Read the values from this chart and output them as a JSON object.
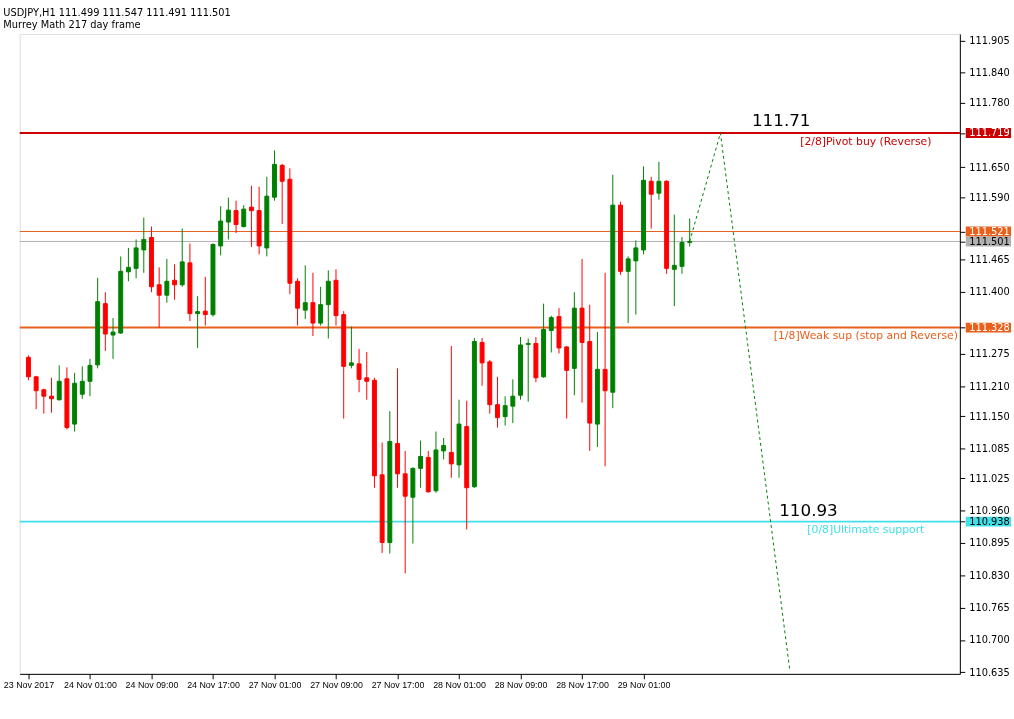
{
  "chart_data": {
    "type": "candlestick",
    "title": "USDJPY,H1  111.499 111.547 111.491 111.501",
    "subtitle": "Murrey Math 217 day frame",
    "categories": [
      "23 Nov 2017",
      null,
      null,
      null,
      null,
      null,
      null,
      null,
      "24 Nov 01:00",
      null,
      null,
      null,
      null,
      null,
      null,
      null,
      "24 Nov 09:00",
      null,
      null,
      null,
      null,
      null,
      null,
      null,
      "24 Nov 17:00",
      null,
      null,
      null,
      null,
      null,
      null,
      null,
      "27 Nov 01:00",
      null,
      null,
      null,
      null,
      null,
      null,
      null,
      "27 Nov 09:00",
      null,
      null,
      null,
      null,
      null,
      null,
      null,
      "27 Nov 17:00",
      null,
      null,
      null,
      null,
      null,
      null,
      null,
      "28 Nov 01:00",
      null,
      null,
      null,
      null,
      null,
      null,
      null,
      "28 Nov 09:00",
      null,
      null,
      null,
      null,
      null,
      null,
      null,
      "28 Nov 17:00",
      null,
      null,
      null,
      null,
      null,
      null,
      null,
      "29 Nov 01:00",
      null,
      null,
      null,
      null,
      null,
      null,
      null,
      null,
      null,
      null,
      null,
      null,
      null,
      null,
      null,
      null,
      null,
      null,
      null,
      null,
      null,
      null,
      null,
      null,
      null,
      null,
      null,
      null,
      null,
      null,
      null,
      null,
      null,
      null,
      null,
      null,
      null,
      null,
      null,
      null
    ],
    "ohlc": [
      [
        111.268,
        111.272,
        111.222,
        111.229
      ],
      [
        111.229,
        111.231,
        111.164,
        111.201
      ],
      [
        111.203,
        111.205,
        111.155,
        111.19
      ],
      [
        111.19,
        111.227,
        111.157,
        111.185
      ],
      [
        111.183,
        111.252,
        111.181,
        111.22
      ],
      [
        111.225,
        111.248,
        111.123,
        111.127
      ],
      [
        111.134,
        111.237,
        111.119,
        111.216
      ],
      [
        111.194,
        111.25,
        111.185,
        111.22
      ],
      [
        111.22,
        111.265,
        111.19,
        111.252
      ],
      [
        111.253,
        111.428,
        111.246,
        111.38
      ],
      [
        111.376,
        111.399,
        111.281,
        111.315
      ],
      [
        111.313,
        111.347,
        111.265,
        111.319
      ],
      [
        111.317,
        111.471,
        111.315,
        111.441
      ],
      [
        111.44,
        111.488,
        111.421,
        111.449
      ],
      [
        111.447,
        111.505,
        111.427,
        111.488
      ],
      [
        111.484,
        111.549,
        111.438,
        111.505
      ],
      [
        111.509,
        111.531,
        111.399,
        111.41
      ],
      [
        111.414,
        111.449,
        111.328,
        111.393
      ],
      [
        111.393,
        111.466,
        111.378,
        111.421
      ],
      [
        111.423,
        111.455,
        111.384,
        111.414
      ],
      [
        111.414,
        111.527,
        111.41,
        111.46
      ],
      [
        111.458,
        111.497,
        111.341,
        111.356
      ],
      [
        111.356,
        111.391,
        111.287,
        111.36
      ],
      [
        111.361,
        111.43,
        111.332,
        111.354
      ],
      [
        111.354,
        111.497,
        111.35,
        111.495
      ],
      [
        111.492,
        111.572,
        111.473,
        111.542
      ],
      [
        111.54,
        111.589,
        111.505,
        111.564
      ],
      [
        111.563,
        111.583,
        111.518,
        111.535
      ],
      [
        111.531,
        111.574,
        111.529,
        111.566
      ],
      [
        111.57,
        111.613,
        111.49,
        111.563
      ],
      [
        111.563,
        111.611,
        111.475,
        111.492
      ],
      [
        111.488,
        111.631,
        111.471,
        111.592
      ],
      [
        111.59,
        111.684,
        111.583,
        111.656
      ],
      [
        111.654,
        111.657,
        111.536,
        111.622
      ],
      [
        111.626,
        111.648,
        111.395,
        111.417
      ],
      [
        111.421,
        111.427,
        111.332,
        111.367
      ],
      [
        111.363,
        111.453,
        111.345,
        111.378
      ],
      [
        111.378,
        111.438,
        111.311,
        111.337
      ],
      [
        111.337,
        111.41,
        111.332,
        111.374
      ],
      [
        111.374,
        111.443,
        111.306,
        111.421
      ],
      [
        111.423,
        111.445,
        111.332,
        111.352
      ],
      [
        111.354,
        111.361,
        111.145,
        111.25
      ],
      [
        111.252,
        111.33,
        111.246,
        111.257
      ],
      [
        111.255,
        111.285,
        111.198,
        111.224
      ],
      [
        111.227,
        111.279,
        111.183,
        111.22
      ],
      [
        111.222,
        111.227,
        111.006,
        111.03
      ],
      [
        111.032,
        111.097,
        110.875,
        110.896
      ],
      [
        110.896,
        111.16,
        110.874,
        111.099
      ],
      [
        111.095,
        111.246,
        111.006,
        111.034
      ],
      [
        111.034,
        111.08,
        110.834,
        110.989
      ],
      [
        110.987,
        111.047,
        110.894,
        111.045
      ],
      [
        111.045,
        111.101,
        111.006,
        111.069
      ],
      [
        111.067,
        111.08,
        110.996,
        110.998
      ],
      [
        111.0,
        111.119,
        110.996,
        111.082
      ],
      [
        111.08,
        111.106,
        111.063,
        111.091
      ],
      [
        111.077,
        111.291,
        111.026,
        111.054
      ],
      [
        111.052,
        111.183,
        111.026,
        111.134
      ],
      [
        111.129,
        111.181,
        110.922,
        111.006
      ],
      [
        111.008,
        111.307,
        111.006,
        111.3
      ],
      [
        111.298,
        111.307,
        111.211,
        111.257
      ],
      [
        111.259,
        111.263,
        111.155,
        111.173
      ],
      [
        111.173,
        111.229,
        111.127,
        111.147
      ],
      [
        111.149,
        111.19,
        111.131,
        111.171
      ],
      [
        111.17,
        111.224,
        111.136,
        111.19
      ],
      [
        111.192,
        111.309,
        111.183,
        111.293
      ],
      [
        111.294,
        111.306,
        111.179,
        111.296
      ],
      [
        111.296,
        111.309,
        111.218,
        111.227
      ],
      [
        111.229,
        111.376,
        111.227,
        111.324
      ],
      [
        111.322,
        111.352,
        111.278,
        111.348
      ],
      [
        111.35,
        111.367,
        111.276,
        111.287
      ],
      [
        111.289,
        111.291,
        111.145,
        111.242
      ],
      [
        111.246,
        111.399,
        111.192,
        111.367
      ],
      [
        111.367,
        111.466,
        111.177,
        111.298
      ],
      [
        111.3,
        111.374,
        111.08,
        111.136
      ],
      [
        111.134,
        111.319,
        111.088,
        111.244
      ],
      [
        111.244,
        111.438,
        111.049,
        111.201
      ],
      [
        111.198,
        111.635,
        111.166,
        111.574
      ],
      [
        111.574,
        111.581,
        111.434,
        111.441
      ],
      [
        111.441,
        111.471,
        111.337,
        111.466
      ],
      [
        111.462,
        111.503,
        111.354,
        111.488
      ],
      [
        111.484,
        111.652,
        111.475,
        111.624
      ],
      [
        111.622,
        111.631,
        111.527,
        111.596
      ],
      [
        111.598,
        111.661,
        111.585,
        111.622
      ],
      [
        111.622,
        111.624,
        111.436,
        111.447
      ],
      [
        111.445,
        111.555,
        111.371,
        111.453
      ],
      [
        111.451,
        111.51,
        111.436,
        111.499
      ],
      [
        111.499,
        111.547,
        111.491,
        111.501
      ],
      null,
      null,
      null,
      null,
      null,
      null,
      null,
      null,
      null,
      null,
      null,
      null,
      null,
      null,
      null,
      null,
      null,
      null,
      null,
      null,
      null,
      null,
      null,
      null,
      null,
      null,
      null,
      null,
      null,
      null,
      null,
      null,
      null,
      null
    ],
    "colors": [
      "#ff0000",
      "#ff0000",
      "#ff0000",
      "#ff0000",
      "#008000",
      "#ff0000",
      "#008000",
      "#008000",
      "#008000",
      "#008000",
      "#ff0000",
      "#008000",
      "#008000",
      "#008000",
      "#008000",
      "#008000",
      "#ff0000",
      "#ff0000",
      "#008000",
      "#ff0000",
      "#008000",
      "#ff0000",
      "#008000",
      "#ff0000",
      "#008000",
      "#008000",
      "#008000",
      "#ff0000",
      "#008000",
      "#ff0000",
      "#ff0000",
      "#008000",
      "#008000",
      "#ff0000",
      "#ff0000",
      "#ff0000",
      "#008000",
      "#ff0000",
      "#008000",
      "#008000",
      "#ff0000",
      "#ff0000",
      "#008000",
      "#ff0000",
      "#ff0000",
      "#ff0000",
      "#ff0000",
      "#008000",
      "#ff0000",
      "#ff0000",
      "#008000",
      "#008000",
      "#ff0000",
      "#008000",
      "#008000",
      "#ff0000",
      "#008000",
      "#ff0000",
      "#008000",
      "#ff0000",
      "#ff0000",
      "#ff0000",
      "#008000",
      "#008000",
      "#008000",
      "#008000",
      "#ff0000",
      "#008000",
      "#008000",
      "#ff0000",
      "#ff0000",
      "#008000",
      "#ff0000",
      "#ff0000",
      "#008000",
      "#ff0000",
      "#008000",
      "#ff0000",
      "#008000",
      "#008000",
      "#008000",
      "#ff0000",
      "#008000",
      "#ff0000",
      "#008000",
      "#008000",
      "#008000",
      null,
      null,
      null,
      null,
      null,
      null,
      null,
      null,
      null,
      null,
      null,
      null,
      null,
      null,
      null,
      null,
      null,
      null,
      null,
      null,
      null,
      null,
      null,
      null,
      null,
      null,
      null,
      null,
      null,
      null,
      null,
      null,
      null,
      null
    ],
    "series": [
      {
        "type": "line",
        "color": "#008000",
        "line_style": "dashed",
        "values": [
          null,
          null,
          null,
          null,
          null,
          null,
          null,
          null,
          null,
          null,
          null,
          null,
          null,
          null,
          null,
          null,
          null,
          null,
          null,
          null,
          null,
          null,
          null,
          null,
          null,
          null,
          null,
          null,
          null,
          null,
          null,
          null,
          null,
          null,
          null,
          null,
          null,
          null,
          null,
          null,
          null,
          null,
          null,
          null,
          null,
          null,
          null,
          null,
          null,
          null,
          null,
          null,
          null,
          null,
          null,
          null,
          null,
          null,
          null,
          null,
          null,
          null,
          null,
          null,
          null,
          null,
          null,
          null,
          null,
          null,
          null,
          null,
          null,
          null,
          null,
          null,
          null,
          null,
          null,
          null,
          null,
          null,
          null,
          null,
          null,
          null,
          111.501,
          null,
          null,
          null,
          111.719,
          null,
          null,
          null,
          null,
          null,
          null,
          null,
          null,
          110.642,
          null,
          null,
          null,
          null,
          null,
          null,
          null,
          null,
          null,
          null,
          null,
          null,
          null,
          null,
          null,
          null,
          null,
          null,
          null,
          null,
          null
        ]
      }
    ],
    "ylim": [
      110.632,
      111.918
    ],
    "yticks": [
      111.905,
      {
        "value": 111.84,
        "label": "111.840"
      },
      {
        "value": 111.78,
        "label": "111.780"
      },
      111.719,
      {
        "value": 111.65,
        "label": "111.650"
      },
      {
        "value": 111.59,
        "label": "111.590"
      },
      111.521,
      111.501,
      111.465,
      {
        "value": 111.4,
        "label": "111.400"
      },
      111.328,
      111.275,
      {
        "value": 111.21,
        "label": "111.210"
      },
      {
        "value": 111.15,
        "label": "111.150"
      },
      111.085,
      111.025,
      {
        "value": 110.96,
        "label": "110.960"
      },
      110.938,
      110.895,
      {
        "value": 110.83,
        "label": "110.830"
      },
      110.765,
      {
        "value": 110.7,
        "label": "110.700"
      },
      110.635
    ],
    "ref_lines": [
      {
        "axis": "y",
        "value": 111.719,
        "label": "[2/8]Pivot buy (Reverse)",
        "color": "#cc0000"
      },
      {
        "axis": "y",
        "value": 111.521,
        "color": "#e8601c"
      },
      {
        "axis": "y",
        "value": 111.501,
        "color": "#b0b0b0"
      },
      {
        "axis": "y",
        "value": 111.328,
        "label": "[1/8]Weak sup (stop and Reverse)",
        "color": "#e8601c"
      },
      {
        "axis": "y",
        "value": 110.938,
        "label": "[0/8]Ultimate support",
        "color": "#40e0e8"
      }
    ],
    "annotations": [
      "111.71",
      "110.93"
    ]
  }
}
